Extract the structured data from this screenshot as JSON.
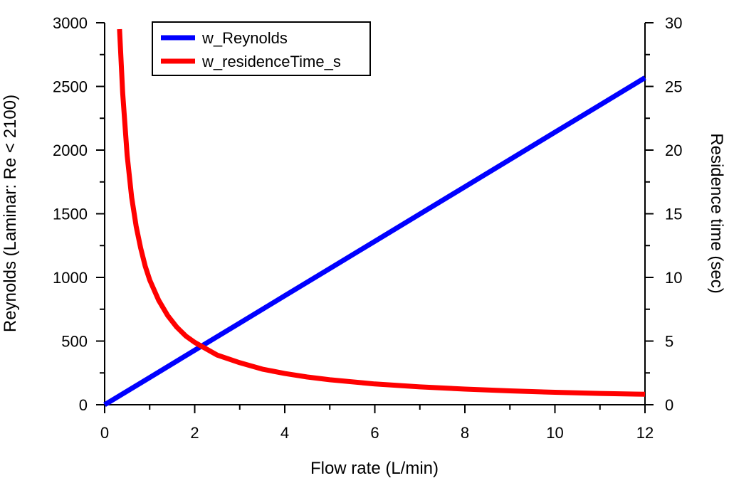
{
  "chart_data": {
    "type": "line",
    "xlabel": "Flow rate (L/min)",
    "ylabel_left": "Reynolds (Laminar: Re < 2100)",
    "ylabel_right": "Residence time (sec)",
    "xlim": [
      0,
      12
    ],
    "ylim_left": [
      0,
      3000
    ],
    "ylim_right": [
      0,
      30
    ],
    "x_ticks": [
      "0",
      "2",
      "4",
      "6",
      "8",
      "10",
      "12"
    ],
    "y_left_ticks": [
      "0",
      "500",
      "1000",
      "1500",
      "2000",
      "2500",
      "3000"
    ],
    "y_right_ticks": [
      "0",
      "5",
      "10",
      "15",
      "20",
      "25",
      "30"
    ],
    "grid": false,
    "legend_position": "top-left",
    "series": [
      {
        "name": "w_Reynolds",
        "axis": "left",
        "color": "#0000ff",
        "x": [
          0,
          1,
          2,
          3,
          4,
          5,
          6,
          7,
          8,
          9,
          10,
          11,
          12
        ],
        "y": [
          0,
          214,
          428,
          642,
          856,
          1070,
          1284,
          1498,
          1712,
          1926,
          2140,
          2354,
          2568
        ]
      },
      {
        "name": "w_residenceTime_s",
        "axis": "right",
        "color": "#ff0000",
        "x": [
          0.33,
          0.4,
          0.5,
          0.6,
          0.7,
          0.8,
          0.9,
          1.0,
          1.2,
          1.4,
          1.6,
          1.8,
          2.0,
          2.5,
          3.0,
          3.5,
          4.0,
          4.5,
          5.0,
          6.0,
          7.0,
          8.0,
          9.0,
          10.0,
          11.0,
          12.0
        ],
        "y": [
          29.5,
          24.5,
          19.6,
          16.3,
          14.0,
          12.3,
          10.9,
          9.8,
          8.2,
          7.0,
          6.1,
          5.4,
          4.9,
          3.9,
          3.3,
          2.8,
          2.45,
          2.18,
          1.96,
          1.63,
          1.4,
          1.23,
          1.09,
          0.98,
          0.89,
          0.82
        ]
      }
    ]
  }
}
